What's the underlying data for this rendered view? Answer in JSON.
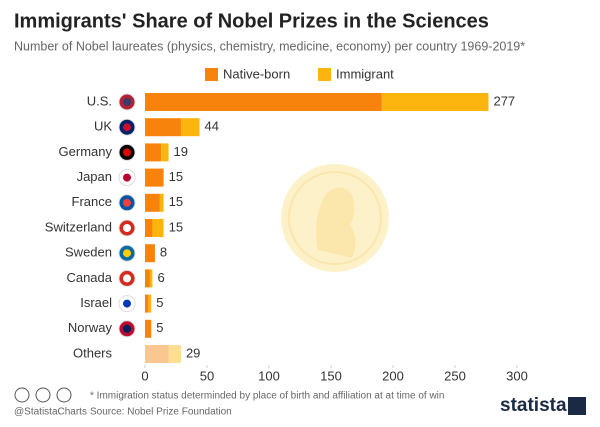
{
  "chart_data": {
    "type": "hbar-stacked",
    "title": "Immigrants' Share of Nobel Prizes in the Sciences",
    "subtitle": "Number of Nobel laureates (physics, chemistry, medicine, economy) per country 1969-2019*",
    "categories": [
      "U.S.",
      "UK",
      "Germany",
      "Japan",
      "France",
      "Switzerland",
      "Sweden",
      "Canada",
      "Israel",
      "Norway",
      "Others"
    ],
    "series": [
      {
        "name": "Native-born",
        "color": "#f7820c",
        "values": [
          191,
          29,
          13,
          15,
          12,
          6,
          8,
          4,
          3,
          5,
          19
        ]
      },
      {
        "name": "Immigrant",
        "color": "#fcb50f",
        "values": [
          86,
          15,
          6,
          0,
          3,
          9,
          0,
          2,
          2,
          0,
          10
        ]
      }
    ],
    "totals": [
      277,
      44,
      19,
      15,
      15,
      15,
      8,
      6,
      5,
      5,
      29
    ],
    "xlim": [
      0,
      300
    ],
    "xticks": [
      0,
      50,
      100,
      150,
      200,
      250,
      300
    ],
    "footnote": "* Immigration status determinded by place of birth and affiliation at at time of win",
    "source": "Source: Nobel Prize Foundation",
    "handle": "@StatistaCharts",
    "brand": "statista"
  }
}
